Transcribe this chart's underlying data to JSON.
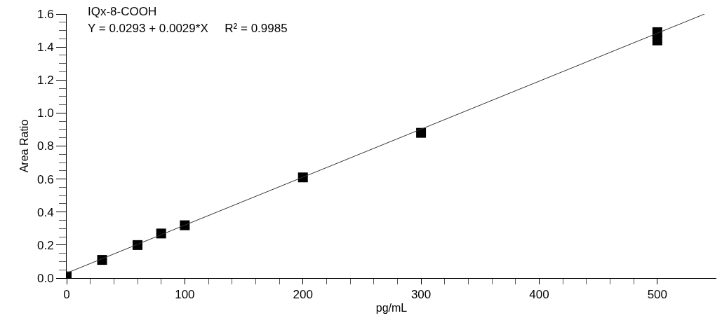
{
  "chart_data": {
    "type": "scatter",
    "xlabel": "pg/mL",
    "ylabel": "Area Ratio",
    "annotations": [
      "IQx-8-COOH",
      "Y = 0.0293 + 0.0029*X     R² = 0.9985"
    ],
    "xlim": [
      0,
      550
    ],
    "xticks": [
      0,
      100,
      200,
      300,
      400,
      500
    ],
    "ylim": [
      0,
      1.6
    ],
    "yticks": [
      {
        "value": 0,
        "label": "0.0"
      },
      {
        "value": 0.2,
        "label": "0.2"
      },
      {
        "value": 0.4,
        "label": "0.4"
      },
      {
        "value": 0.6,
        "label": "0.6"
      },
      {
        "value": 0.8,
        "label": "0.8"
      },
      {
        "value": 1.0,
        "label": "1.0"
      },
      {
        "value": 1.2,
        "label": "1.2"
      },
      {
        "value": 1.4,
        "label": "1.4"
      },
      {
        "value": 1.6,
        "label": "1.6"
      }
    ],
    "series": [
      {
        "marker": "square",
        "color": "#000000",
        "x": [
          0,
          30,
          60,
          80,
          100,
          200,
          300,
          500,
          500
        ],
        "values": [
          0.01,
          0.11,
          0.2,
          0.27,
          0.32,
          0.61,
          0.88,
          1.44,
          1.49
        ]
      },
      {
        "type": "line",
        "marker": "none",
        "color": "#333333",
        "line_style": "solid",
        "x": [
          0,
          540
        ],
        "values": [
          0.03,
          1.6
        ]
      }
    ]
  }
}
